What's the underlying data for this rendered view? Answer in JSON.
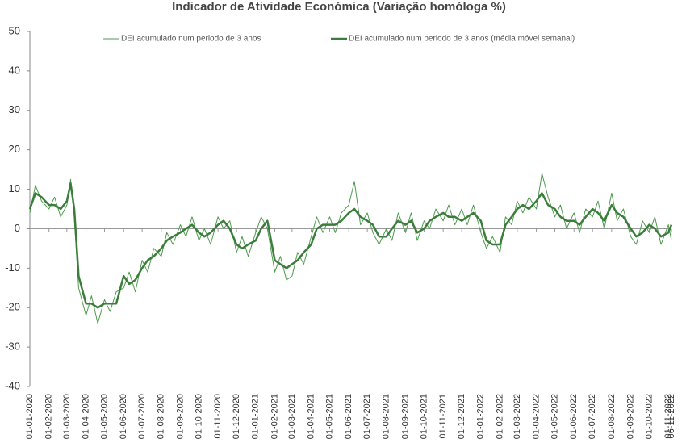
{
  "chart_data": {
    "type": "line",
    "title": "Indicador de Atividade Económica (Variação homóloga %)",
    "x": [
      "01-01-2020",
      "10-01-2020",
      "20-01-2020",
      "01-02-2020",
      "10-02-2020",
      "20-02-2020",
      "01-03-2020",
      "07-03-2020",
      "13-03-2020",
      "20-03-2020",
      "01-04-2020",
      "10-04-2020",
      "20-04-2020",
      "01-05-2020",
      "10-05-2020",
      "20-05-2020",
      "01-06-2020",
      "10-06-2020",
      "20-06-2020",
      "01-07-2020",
      "10-07-2020",
      "20-07-2020",
      "01-08-2020",
      "10-08-2020",
      "20-08-2020",
      "01-09-2020",
      "10-09-2020",
      "20-09-2020",
      "01-10-2020",
      "10-10-2020",
      "20-10-2020",
      "01-11-2020",
      "10-11-2020",
      "20-11-2020",
      "01-12-2020",
      "10-12-2020",
      "20-12-2020",
      "01-01-2021",
      "10-01-2021",
      "20-01-2021",
      "01-02-2021",
      "10-02-2021",
      "20-02-2021",
      "01-03-2021",
      "10-03-2021",
      "20-03-2021",
      "01-04-2021",
      "10-04-2021",
      "20-04-2021",
      "01-05-2021",
      "10-05-2021",
      "20-05-2021",
      "01-06-2021",
      "10-06-2021",
      "20-06-2021",
      "01-07-2021",
      "10-07-2021",
      "20-07-2021",
      "01-08-2021",
      "10-08-2021",
      "20-08-2021",
      "01-09-2021",
      "10-09-2021",
      "20-09-2021",
      "01-10-2021",
      "10-10-2021",
      "20-10-2021",
      "01-11-2021",
      "10-11-2021",
      "20-11-2021",
      "01-12-2021",
      "10-12-2021",
      "20-12-2021",
      "01-01-2022",
      "10-01-2022",
      "20-01-2022",
      "01-02-2022",
      "10-02-2022",
      "20-02-2022",
      "01-03-2022",
      "10-03-2022",
      "20-03-2022",
      "01-04-2022",
      "10-04-2022",
      "20-04-2022",
      "01-05-2022",
      "10-05-2022",
      "20-05-2022",
      "01-06-2022",
      "10-06-2022",
      "20-06-2022",
      "01-07-2022",
      "10-07-2022",
      "20-07-2022",
      "01-08-2022",
      "10-08-2022",
      "20-08-2022",
      "01-09-2022",
      "10-09-2022",
      "20-09-2022",
      "01-10-2022",
      "10-10-2022",
      "20-10-2022",
      "01-11-2022",
      "06-11-2022"
    ],
    "series": [
      {
        "name": "DEI acumulado num periodo de 3 anos",
        "color": "#4e9a4e",
        "width": 1,
        "values": [
          4,
          11,
          7,
          5,
          8,
          3,
          6,
          12.5,
          3,
          -15,
          -22,
          -17,
          -24,
          -18,
          -21,
          -16,
          -15,
          -11,
          -16,
          -8,
          -11,
          -5,
          -7,
          -1,
          -4,
          1,
          -2,
          3,
          -3,
          0,
          -4,
          3,
          0,
          2,
          -6,
          -2,
          -7,
          -1,
          3,
          0,
          -11,
          -7,
          -13,
          -12,
          -6,
          -9,
          -2,
          3,
          -1,
          3,
          -1,
          4,
          6,
          12,
          1,
          4,
          -1,
          -4,
          0,
          -3,
          4,
          -1,
          4,
          -3,
          2,
          0,
          5,
          2,
          6,
          1,
          5,
          1,
          6,
          -1,
          -5,
          -2,
          -6,
          3,
          1,
          7,
          4,
          8,
          5,
          14,
          8,
          3,
          6,
          0,
          4,
          -1,
          5,
          3,
          7,
          0,
          9,
          2,
          5,
          -2,
          -4,
          2,
          -1,
          3,
          -4,
          1,
          -3
        ]
      },
      {
        "name": "DEI acumulado num periodo de 3 anos (média móvel semanal)",
        "color": "#3b7d3b",
        "width": 2.5,
        "values": [
          5,
          9,
          8,
          6,
          6,
          5,
          7,
          11.5,
          5,
          -12,
          -19,
          -19,
          -20,
          -19,
          -19,
          -19,
          -12,
          -14,
          -13,
          -10,
          -8,
          -7,
          -5,
          -3,
          -2,
          -1,
          0,
          1,
          -1,
          -2,
          -1,
          1,
          2,
          0,
          -4,
          -5,
          -4,
          -3,
          0,
          2,
          -8,
          -9,
          -10,
          -9,
          -8,
          -6,
          -4,
          0,
          1,
          1,
          1,
          2,
          4,
          5,
          3,
          2,
          1,
          -2,
          -2,
          0,
          2,
          1,
          2,
          -1,
          0,
          2,
          3,
          4,
          3,
          3,
          2,
          3,
          4,
          2,
          -3,
          -4,
          -4,
          1,
          3,
          5,
          6,
          5,
          7,
          9,
          6,
          5,
          3,
          2,
          2,
          1,
          3,
          5,
          4,
          2,
          6,
          4,
          3,
          0,
          -2,
          -1,
          1,
          0,
          -2,
          -1,
          1
        ]
      }
    ],
    "xlim": [
      "01-01-2020",
      "06-11-2022"
    ],
    "xticks": [
      "01-01-2020",
      "01-02-2020",
      "01-03-2020",
      "01-04-2020",
      "01-05-2020",
      "01-06-2020",
      "01-07-2020",
      "01-08-2020",
      "01-09-2020",
      "01-10-2020",
      "01-11-2020",
      "01-12-2020",
      "01-01-2021",
      "01-02-2021",
      "01-03-2021",
      "01-04-2021",
      "01-05-2021",
      "01-06-2021",
      "01-07-2021",
      "01-08-2021",
      "01-09-2021",
      "01-10-2021",
      "01-11-2021",
      "01-12-2021",
      "01-01-2022",
      "01-02-2022",
      "01-03-2022",
      "01-04-2022",
      "01-05-2022",
      "01-06-2022",
      "01-07-2022",
      "01-08-2022",
      "01-09-2022",
      "01-10-2022",
      "01-11-2022",
      "06-11-2022"
    ],
    "ylim": [
      -40,
      50
    ],
    "yticks": [
      -40,
      -30,
      -20,
      -10,
      0,
      10,
      20,
      30,
      40,
      50
    ]
  }
}
